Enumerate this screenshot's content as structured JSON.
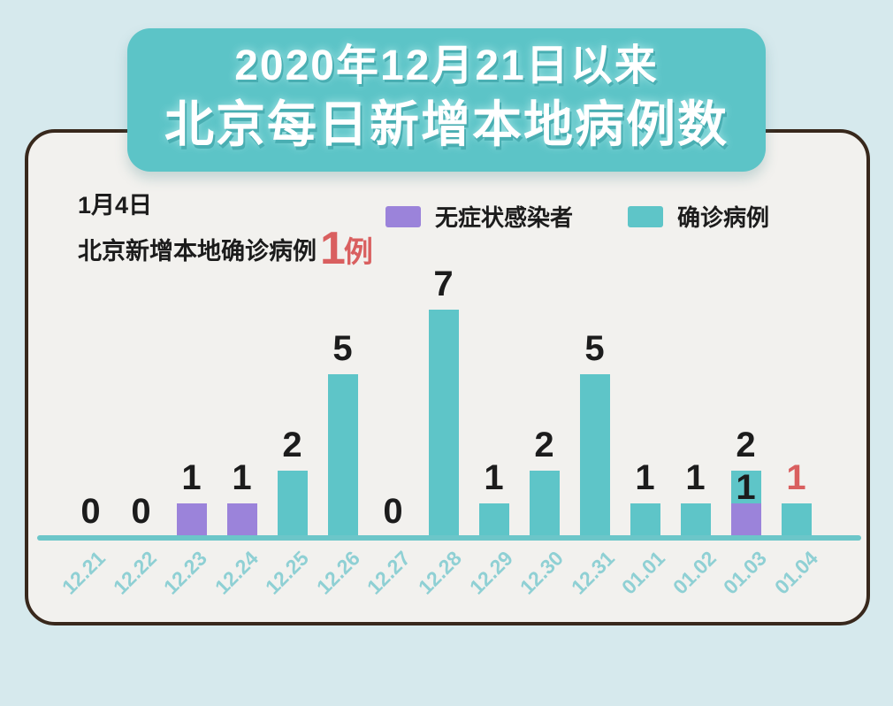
{
  "page": {
    "background_color": "#d6e9ed",
    "card_color": "#f2f1ee",
    "card_border_color": "#38281c"
  },
  "title_banner": {
    "line1": "2020年12月21日以来",
    "line2": "北京每日新增本地病例数",
    "background_color": "#5cc4c7",
    "text_color": "#ffffff"
  },
  "subtitle": {
    "date": "1月4日",
    "text": "北京新增本地确诊病例",
    "highlight_value": "1",
    "highlight_unit": "例",
    "highlight_color": "#d95f5f"
  },
  "legend": [
    {
      "label": "无症状感染者",
      "color": "#9b83da"
    },
    {
      "label": "确诊病例",
      "color": "#5ec5c8"
    }
  ],
  "chart_data": {
    "type": "bar",
    "stacked": true,
    "title": "2020年12月21日以来 北京每日新增本地病例数",
    "categories": [
      "12.21",
      "12.22",
      "12.23",
      "12.24",
      "12.25",
      "12.26",
      "12.27",
      "12.28",
      "12.29",
      "12.30",
      "12.31",
      "01.01",
      "01.02",
      "01.03",
      "01.04"
    ],
    "series": [
      {
        "name": "无症状感染者",
        "color": "#9b83da",
        "values": [
          0,
          0,
          1,
          1,
          0,
          0,
          0,
          0,
          0,
          0,
          0,
          0,
          0,
          1,
          0
        ]
      },
      {
        "name": "确诊病例",
        "color": "#5ec5c8",
        "values": [
          0,
          0,
          0,
          0,
          2,
          5,
          0,
          7,
          1,
          2,
          5,
          1,
          1,
          1,
          1
        ]
      }
    ],
    "totals": [
      0,
      0,
      1,
      1,
      2,
      5,
      0,
      7,
      1,
      2,
      5,
      1,
      1,
      2,
      1
    ],
    "total_label_colors": [
      "#1c1c1c",
      "#1c1c1c",
      "#1c1c1c",
      "#1c1c1c",
      "#1c1c1c",
      "#1c1c1c",
      "#1c1c1c",
      "#1c1c1c",
      "#1c1c1c",
      "#1c1c1c",
      "#1c1c1c",
      "#1c1c1c",
      "#1c1c1c",
      "#1c1c1c",
      "#d95f5f"
    ],
    "segment_inner_labels": [
      {
        "category": "01.03",
        "series": "确诊病例",
        "text": "1",
        "color": "#1c1c1c"
      }
    ],
    "ylim": [
      0,
      7.6
    ],
    "grid": false,
    "legend_position": "top",
    "axis_color": "#6cc6c9",
    "tick_label_color": "#8fd0d4"
  }
}
